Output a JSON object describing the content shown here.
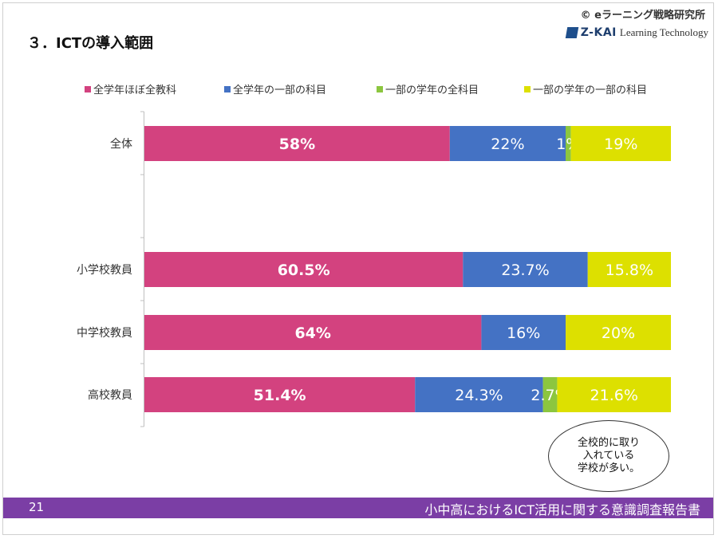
{
  "slide": {
    "title": "３．ICTの導入範囲",
    "copyright": "© eラーニング戦略研究所",
    "brand_name": "Z-KAI",
    "brand_sub": "Learning Technology"
  },
  "callout": "全校的に取り\n入れている\n学校が多い。",
  "footer": {
    "page_number": "21",
    "report_title": "小中高におけるICT活用に関する意識調査報告書"
  },
  "colors": {
    "all_subjects_all_grades": "#d3427f",
    "some_subjects_all_grades": "#4472c4",
    "all_subjects_some_grades": "#8cc63f",
    "some_subjects_some_grades": "#dde000",
    "footer": "#7b3ea5"
  },
  "chart_data": {
    "type": "bar",
    "orientation": "horizontal",
    "stacked": "percent",
    "categories": [
      "全体",
      "小学校教員",
      "中学校教員",
      "高校教員"
    ],
    "series": [
      {
        "name": "全学年ほぼ全教科",
        "color": "#d3427f",
        "values": [
          58,
          60.5,
          64,
          51.4
        ],
        "labels": [
          "58%",
          "60.5%",
          "64%",
          "51.4%"
        ]
      },
      {
        "name": "全学年の一部の科目",
        "color": "#4472c4",
        "values": [
          22,
          23.7,
          16,
          24.3
        ],
        "labels": [
          "22%",
          "23.7%",
          "16%",
          "24.3%"
        ]
      },
      {
        "name": "一部の学年の全科目",
        "color": "#8cc63f",
        "values": [
          1,
          0,
          0,
          2.7
        ],
        "labels": [
          "1%",
          "",
          "",
          "2.7%"
        ]
      },
      {
        "name": "一部の学年の一部の科目",
        "color": "#dde000",
        "values": [
          19,
          15.8,
          20,
          21.6
        ],
        "labels": [
          "19%",
          "15.8%",
          "20%",
          "21.6%"
        ]
      }
    ],
    "legend_position": "top",
    "xlim": [
      0,
      100
    ],
    "grid": false
  }
}
